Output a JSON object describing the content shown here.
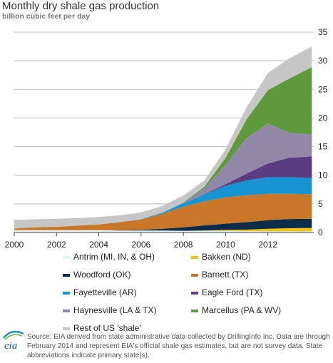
{
  "title": "Monthly dry shale gas production",
  "subtitle": "billion cubic feet per day",
  "source": "Source: EIA derived from state administrative data collected by DrillingInfo Inc. Data are through February 2014 and represent EIA's official shale gas estimates, but are not survey data. State abbreviations indicate primary state(s).",
  "logo_text": "eia",
  "chart_data": {
    "type": "area",
    "stacked": true,
    "xlim": [
      2000,
      2014.17
    ],
    "ylim": [
      0,
      35
    ],
    "x_ticks": [
      "2000",
      "2002",
      "2004",
      "2006",
      "2008",
      "2010",
      "2012"
    ],
    "x_tick_values": [
      2000,
      2002,
      2004,
      2006,
      2008,
      2010,
      2012
    ],
    "y_ticks": [
      "0",
      "5",
      "10",
      "15",
      "20",
      "25",
      "30",
      "35"
    ],
    "y_tick_values": [
      0,
      5,
      10,
      15,
      20,
      25,
      30,
      35
    ],
    "grid": "horizontal",
    "legend_position": "bottom",
    "x": [
      2000,
      2001,
      2002,
      2003,
      2004,
      2005,
      2006,
      2007,
      2008,
      2009,
      2010,
      2011,
      2012,
      2013,
      2014.08
    ],
    "series": [
      {
        "name": "Antrim (MI, IN, & OH)",
        "color": "#dff3fb",
        "values": [
          0.4,
          0.4,
          0.4,
          0.4,
          0.4,
          0.35,
          0.35,
          0.35,
          0.3,
          0.3,
          0.3,
          0.25,
          0.2,
          0.2,
          0.2
        ]
      },
      {
        "name": "Bakken (ND)",
        "color": "#f5c20f",
        "values": [
          0,
          0,
          0,
          0,
          0,
          0,
          0,
          0,
          0,
          0.05,
          0.15,
          0.25,
          0.45,
          0.55,
          0.6
        ]
      },
      {
        "name": "Woodford (OK)",
        "color": "#0b2d4a",
        "values": [
          0,
          0,
          0,
          0,
          0,
          0.05,
          0.1,
          0.3,
          0.6,
          0.9,
          1.1,
          1.3,
          1.5,
          1.6,
          1.6
        ]
      },
      {
        "name": "Barnett (TX)",
        "color": "#c87628",
        "values": [
          0.3,
          0.5,
          0.6,
          0.8,
          1.0,
          1.4,
          1.8,
          2.6,
          3.6,
          4.2,
          4.6,
          4.7,
          4.6,
          4.4,
          4.3
        ]
      },
      {
        "name": "Fayetteville (AR)",
        "color": "#1795d2",
        "values": [
          0,
          0,
          0,
          0,
          0,
          0,
          0.05,
          0.2,
          0.6,
          1.2,
          2.0,
          2.6,
          2.9,
          2.9,
          2.8
        ]
      },
      {
        "name": "Eagle Ford (TX)",
        "color": "#5a3c82",
        "values": [
          0,
          0,
          0,
          0,
          0,
          0,
          0,
          0,
          0,
          0.05,
          0.3,
          1.2,
          2.4,
          3.4,
          3.8
        ]
      },
      {
        "name": "Haynesville (LA & TX)",
        "color": "#9088a6",
        "values": [
          0,
          0,
          0,
          0,
          0,
          0,
          0,
          0,
          0.1,
          1.0,
          3.4,
          6.2,
          7.0,
          4.4,
          3.8
        ]
      },
      {
        "name": "Marcellus (PA & WV)",
        "color": "#5f9a3a",
        "values": [
          0,
          0,
          0,
          0,
          0,
          0,
          0,
          0,
          0.05,
          0.3,
          1.2,
          3.3,
          5.8,
          9.4,
          11.8
        ]
      },
      {
        "name": "Rest of US 'shale'",
        "color": "#c6c6c6",
        "values": [
          1.5,
          1.4,
          1.4,
          1.3,
          1.3,
          1.2,
          1.2,
          1.2,
          1.2,
          1.1,
          1.5,
          2.1,
          3.0,
          3.5,
          3.6
        ]
      }
    ]
  }
}
